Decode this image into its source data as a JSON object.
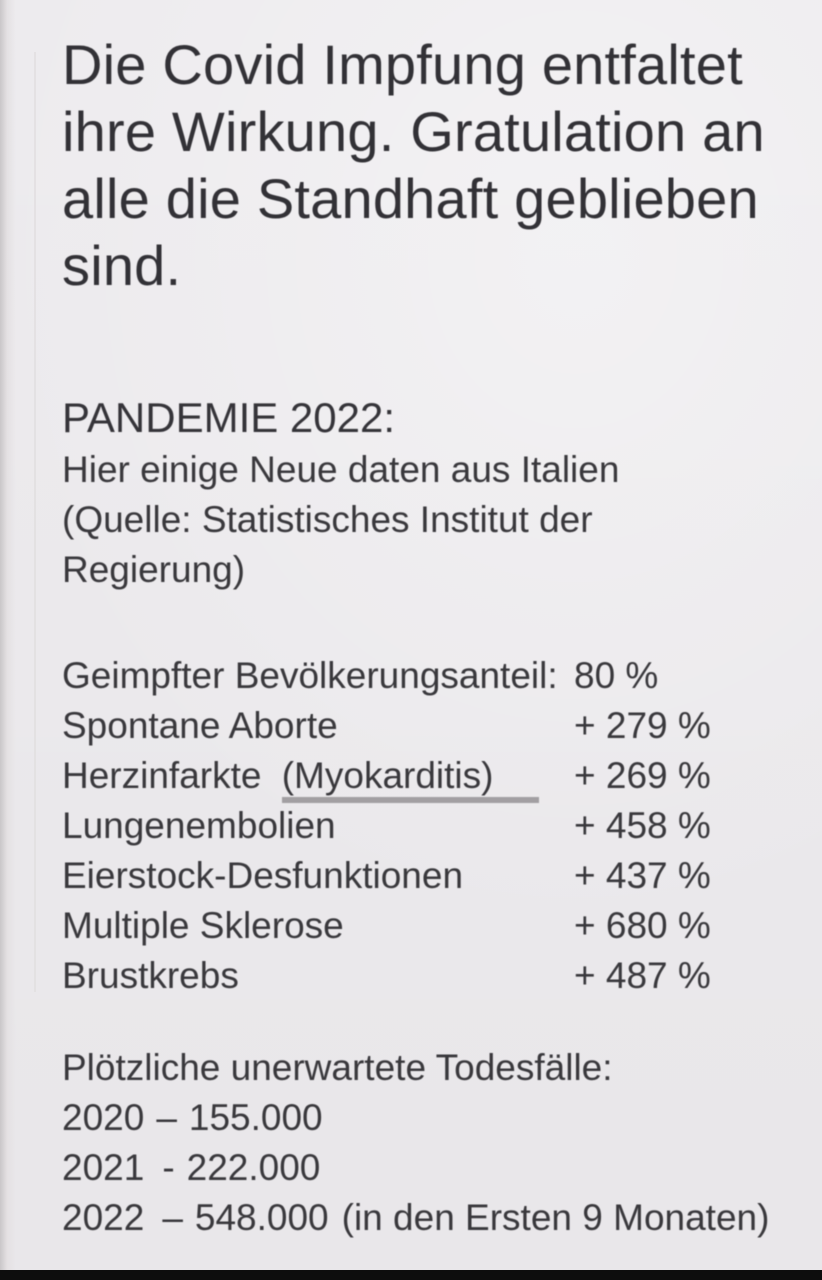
{
  "page": {
    "background_color": "#f1eff2",
    "text_color": "#39383c",
    "underline_color": "#a29fa2",
    "bottom_bar_color": "#0d0d0d"
  },
  "intro": {
    "lines": [
      "Die Covid Impfung entfaltet",
      "ihre Wirkung. Gratulation an",
      "alle die Standhaft geblieben",
      "sind."
    ]
  },
  "pandemic_section": {
    "title": "PANDEMIE 2022:",
    "subtitle": "Hier einige Neue daten aus Italien",
    "source": "(Quelle: Statistisches Institut der Regierung)"
  },
  "statistics": {
    "vaccinated": {
      "label": "Geimpfter Bevölkerungsanteil:",
      "value": "80 %"
    },
    "rows": [
      {
        "label": "Spontane Aborte",
        "value": "+ 279 %"
      },
      {
        "label": "Herzinfarkte",
        "label_suffix": "(Myokarditis)",
        "value": "+ 269 %"
      },
      {
        "label": "Lungenembolien",
        "value": "+ 458 %"
      },
      {
        "label": "Eierstock-Desfunktionen",
        "value": "+ 437 %"
      },
      {
        "label": "Multiple Sklerose",
        "value": "+ 680 %"
      },
      {
        "label": "Brustkrebs",
        "value": "+ 487 %"
      }
    ]
  },
  "deaths_section": {
    "title": "Plötzliche unerwartete Todesfälle:",
    "rows": [
      {
        "year": "2020",
        "separator": "–",
        "amount": "155.000",
        "note": ""
      },
      {
        "year": "2021",
        "separator": "-",
        "amount": "222.000",
        "note": ""
      },
      {
        "year": "2022",
        "separator": "–",
        "amount": "548.000",
        "note": "(in den Ersten 9 Monaten)"
      }
    ]
  }
}
